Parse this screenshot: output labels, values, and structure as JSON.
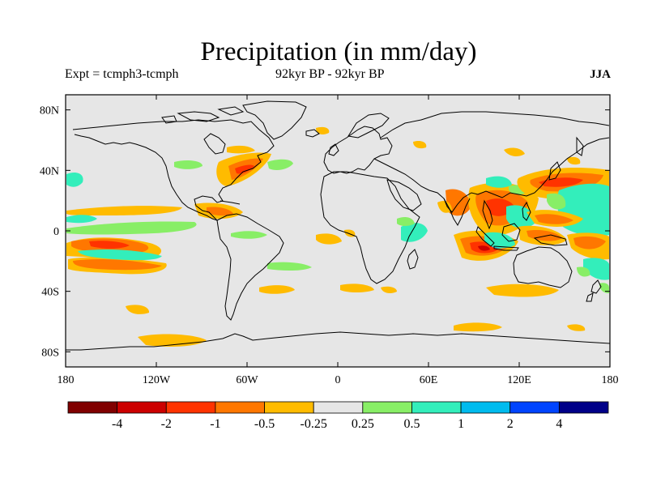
{
  "title": "Precipitation (in mm/day)",
  "subtitle_left": "Expt = tcmph3-tcmph",
  "subtitle_center": "92kyr BP - 92kyr BP",
  "subtitle_right": "JJA",
  "map": {
    "projection": "cylindrical equidistant",
    "lon_range": [
      -180,
      180
    ],
    "lat_range": [
      -90,
      90
    ],
    "background_color": "#e6e6e6",
    "lat_ticks": [
      {
        "value": 80,
        "label": "80N"
      },
      {
        "value": 40,
        "label": "40N"
      },
      {
        "value": 0,
        "label": "0"
      },
      {
        "value": -40,
        "label": "40S"
      },
      {
        "value": -80,
        "label": "80S"
      }
    ],
    "lon_ticks": [
      {
        "value": -180,
        "label": "180"
      },
      {
        "value": -120,
        "label": "120W"
      },
      {
        "value": -60,
        "label": "60W"
      },
      {
        "value": 0,
        "label": "0"
      },
      {
        "value": 60,
        "label": "60E"
      },
      {
        "value": 120,
        "label": "120E"
      },
      {
        "value": 180,
        "label": "180"
      }
    ]
  },
  "colorbar": {
    "colors": [
      "#800000",
      "#cc0000",
      "#ff3300",
      "#ff7700",
      "#ffbb00",
      "#e6e6e6",
      "#88ee66",
      "#33eebb",
      "#00bbee",
      "#0044ff",
      "#000088"
    ],
    "labels": [
      "-4",
      "-2",
      "-1",
      "-0.5",
      "-0.25",
      "0.25",
      "0.5",
      "1",
      "2",
      "4"
    ]
  }
}
